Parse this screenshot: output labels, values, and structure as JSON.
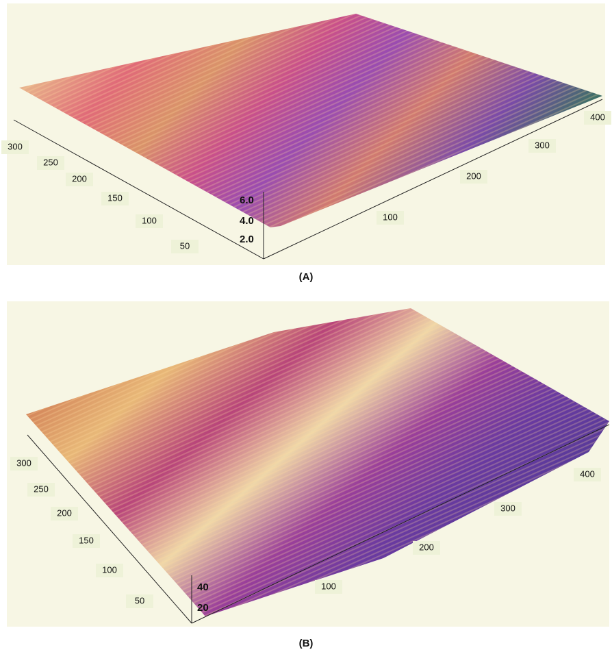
{
  "panels": [
    {
      "caption": "(A)",
      "y_axis_labels": [
        "300",
        "250",
        "200",
        "150",
        "100",
        "50"
      ],
      "x_axis_labels": [
        "100",
        "200",
        "300",
        "400"
      ],
      "z_axis_labels": [
        "6.0",
        "4.0",
        "2.0"
      ]
    },
    {
      "caption": "(B)",
      "y_axis_labels": [
        "300",
        "250",
        "200",
        "150",
        "100",
        "50"
      ],
      "x_axis_labels": [
        "100",
        "200",
        "300",
        "400"
      ],
      "z_axis_labels": [
        "40",
        "20"
      ]
    }
  ]
}
